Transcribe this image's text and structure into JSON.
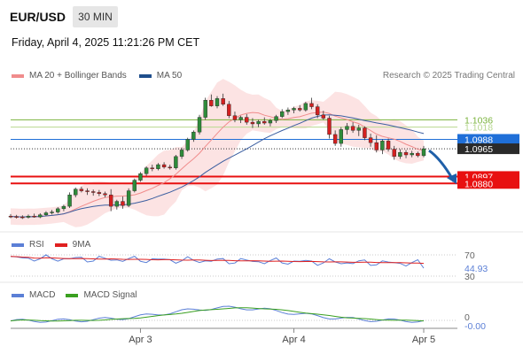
{
  "header": {
    "symbol": "EUR/USD",
    "timeframe": "30 MIN",
    "datetime": "Friday, April 4, 2025 11:21:26 PM CET",
    "credit": "Research © 2025 Trading Central"
  },
  "legends": {
    "main": [
      {
        "label": "MA 20 + Bollinger Bands",
        "color": "#f08c8c"
      },
      {
        "label": "MA 50",
        "color": "#1f4e8c"
      }
    ],
    "rsi": [
      {
        "label": "RSI",
        "color": "#5b7fd6"
      },
      {
        "label": "9MA",
        "color": "#e02020"
      }
    ],
    "macd": [
      {
        "label": "MACD",
        "color": "#5b7fd6"
      },
      {
        "label": "MACD Signal",
        "color": "#3aa020"
      }
    ]
  },
  "chart_data": {
    "type": "candlestick",
    "symbol": "EUR/USD",
    "timeframe": "30 MIN",
    "x_ticks": [
      "Apr 3",
      "Apr 4",
      "Apr 5"
    ],
    "price_levels": [
      {
        "value": 1.1036,
        "label": "1.1036",
        "kind": "resistance",
        "color": "#7ab33c"
      },
      {
        "value": 1.1018,
        "label": "1.1018",
        "kind": "resistance",
        "color": "#b8d890"
      },
      {
        "value": 1.0988,
        "label": "1.0988",
        "kind": "pivot",
        "color": "#1f6fd8"
      },
      {
        "value": 1.0965,
        "label": "1.0965",
        "kind": "last",
        "color": "#222222"
      },
      {
        "value": 1.0897,
        "label": "1.0897",
        "kind": "support",
        "color": "#e81010"
      },
      {
        "value": 1.088,
        "label": "1.0880",
        "kind": "support",
        "color": "#e81010"
      }
    ],
    "candles": [
      [
        1.08,
        1.0805,
        1.0795,
        1.0799
      ],
      [
        1.0799,
        1.0803,
        1.0794,
        1.0798
      ],
      [
        1.0798,
        1.0802,
        1.0793,
        1.0797
      ],
      [
        1.0797,
        1.0804,
        1.0794,
        1.08
      ],
      [
        1.08,
        1.0806,
        1.0796,
        1.0798
      ],
      [
        1.0798,
        1.0807,
        1.0795,
        1.0803
      ],
      [
        1.0803,
        1.0812,
        1.08,
        1.0808
      ],
      [
        1.0808,
        1.0815,
        1.0804,
        1.081
      ],
      [
        1.081,
        1.0822,
        1.0806,
        1.0818
      ],
      [
        1.0818,
        1.0828,
        1.0812,
        1.0824
      ],
      [
        1.0824,
        1.0858,
        1.082,
        1.0852
      ],
      [
        1.0852,
        1.087,
        1.0846,
        1.0866
      ],
      [
        1.0866,
        1.0872,
        1.0858,
        1.0862
      ],
      [
        1.0862,
        1.0868,
        1.0852,
        1.086
      ],
      [
        1.086,
        1.0865,
        1.085,
        1.0858
      ],
      [
        1.0858,
        1.0864,
        1.0849,
        1.0855
      ],
      [
        1.0855,
        1.086,
        1.0846,
        1.0852
      ],
      [
        1.0852,
        1.0866,
        1.0812,
        1.0824
      ],
      [
        1.0824,
        1.084,
        1.0816,
        1.0836
      ],
      [
        1.0836,
        1.0848,
        1.0818,
        1.0826
      ],
      [
        1.0826,
        1.0868,
        1.0822,
        1.0862
      ],
      [
        1.0862,
        1.0892,
        1.0858,
        1.0888
      ],
      [
        1.0888,
        1.0908,
        1.0884,
        1.0904
      ],
      [
        1.0904,
        1.0922,
        1.0898,
        1.0918
      ],
      [
        1.0918,
        1.0926,
        1.091,
        1.0916
      ],
      [
        1.0916,
        1.093,
        1.0912,
        1.0926
      ],
      [
        1.0926,
        1.0932,
        1.0916,
        1.092
      ],
      [
        1.092,
        1.0926,
        1.0914,
        1.0918
      ],
      [
        1.0918,
        1.095,
        1.0914,
        1.0946
      ],
      [
        1.0946,
        1.0968,
        1.094,
        1.0962
      ],
      [
        1.0962,
        1.0992,
        1.0958,
        1.0988
      ],
      [
        1.0988,
        1.101,
        1.0982,
        1.1006
      ],
      [
        1.1006,
        1.1048,
        1.1,
        1.1042
      ],
      [
        1.1042,
        1.109,
        1.1036,
        1.1084
      ],
      [
        1.1084,
        1.1098,
        1.1068,
        1.107
      ],
      [
        1.107,
        1.1094,
        1.1064,
        1.1088
      ],
      [
        1.1088,
        1.11,
        1.107,
        1.1074
      ],
      [
        1.1074,
        1.1082,
        1.104,
        1.1046
      ],
      [
        1.1046,
        1.1056,
        1.103,
        1.1036
      ],
      [
        1.1036,
        1.1046,
        1.1028,
        1.1042
      ],
      [
        1.1042,
        1.105,
        1.1024,
        1.103
      ],
      [
        1.103,
        1.104,
        1.1016,
        1.1026
      ],
      [
        1.1026,
        1.1036,
        1.1018,
        1.1032
      ],
      [
        1.1032,
        1.1042,
        1.1024,
        1.1028
      ],
      [
        1.1028,
        1.1038,
        1.102,
        1.1034
      ],
      [
        1.1034,
        1.1048,
        1.1028,
        1.1044
      ],
      [
        1.1044,
        1.1062,
        1.104,
        1.1056
      ],
      [
        1.1056,
        1.1066,
        1.1048,
        1.106
      ],
      [
        1.106,
        1.1068,
        1.1052,
        1.1064
      ],
      [
        1.1064,
        1.1072,
        1.1056,
        1.106
      ],
      [
        1.106,
        1.108,
        1.1056,
        1.1076
      ],
      [
        1.1076,
        1.109,
        1.1062,
        1.1068
      ],
      [
        1.1068,
        1.1074,
        1.104,
        1.1048
      ],
      [
        1.1048,
        1.1058,
        1.1036,
        1.104
      ],
      [
        1.104,
        1.1046,
        1.099,
        1.1
      ],
      [
        1.1,
        1.101,
        1.0972,
        1.0978
      ],
      [
        1.0978,
        1.1018,
        1.097,
        1.1012
      ],
      [
        1.1012,
        1.1028,
        1.1,
        1.102
      ],
      [
        1.102,
        1.103,
        1.1004,
        1.101
      ],
      [
        1.101,
        1.1024,
        1.0996,
        1.1016
      ],
      [
        1.1016,
        1.102,
        1.0986,
        1.0992
      ],
      [
        1.0992,
        1.1002,
        1.097,
        1.098
      ],
      [
        1.098,
        1.0998,
        1.0956,
        1.0962
      ],
      [
        1.0962,
        1.0988,
        1.0952,
        1.0984
      ],
      [
        1.0984,
        1.099,
        1.0958,
        1.0964
      ],
      [
        1.0964,
        1.0972,
        1.0938,
        1.0946
      ],
      [
        1.0946,
        1.0964,
        1.094,
        1.0956
      ],
      [
        1.0956,
        1.0962,
        1.0942,
        1.095
      ],
      [
        1.095,
        1.096,
        1.0944,
        1.0954
      ],
      [
        1.0954,
        1.0958,
        1.0944,
        1.0948
      ],
      [
        1.0948,
        1.0972,
        1.0944,
        1.0965
      ]
    ],
    "rsi": {
      "overbought": 70,
      "oversold": 30,
      "value": 44.93,
      "value_label": "44.93",
      "labels": [
        "70",
        "30"
      ]
    },
    "macd": {
      "zero_label": "0",
      "value_label": "-0.00"
    }
  }
}
